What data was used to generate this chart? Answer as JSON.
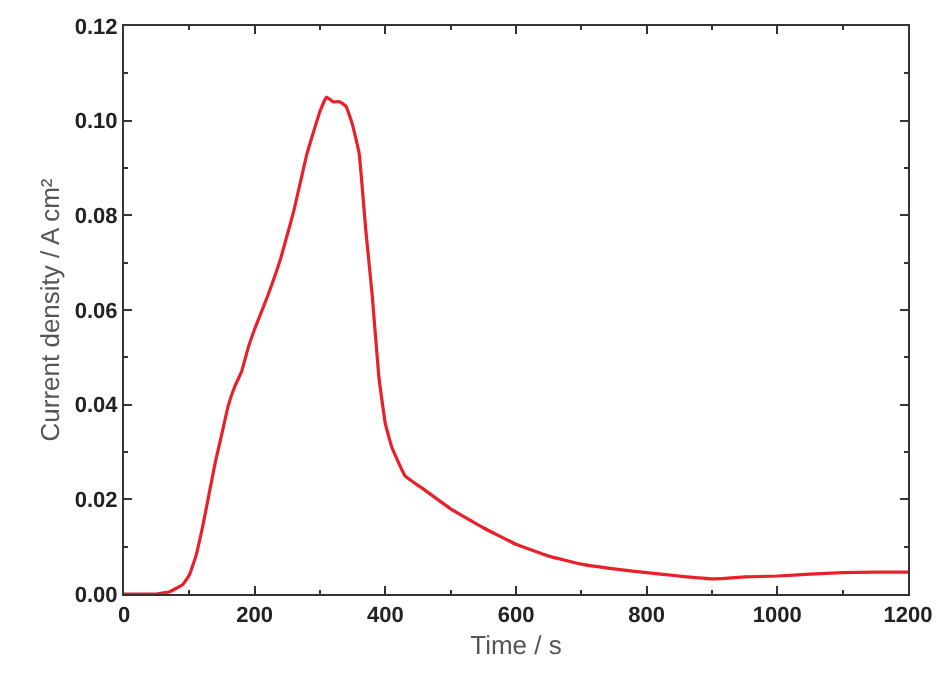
{
  "chart_data": {
    "type": "line",
    "xlabel": "Time / s",
    "ylabel": "Current density / A cm²",
    "x": [
      0,
      50,
      70,
      90,
      100,
      110,
      120,
      130,
      140,
      150,
      160,
      170,
      180,
      190,
      200,
      220,
      240,
      260,
      280,
      300,
      310,
      320,
      330,
      340,
      350,
      360,
      370,
      380,
      390,
      400,
      410,
      430,
      460,
      500,
      550,
      600,
      650,
      700,
      750,
      800,
      850,
      900,
      920,
      950,
      1000,
      1050,
      1100,
      1150,
      1200
    ],
    "series": [
      {
        "color": "#e8202a",
        "values": [
          0,
          0,
          0.0005,
          0.002,
          0.004,
          0.008,
          0.014,
          0.021,
          0.028,
          0.034,
          0.04,
          0.044,
          0.047,
          0.052,
          0.056,
          0.063,
          0.071,
          0.081,
          0.093,
          0.102,
          0.105,
          0.104,
          0.104,
          0.103,
          0.099,
          0.093,
          0.077,
          0.063,
          0.046,
          0.036,
          0.031,
          0.025,
          0.022,
          0.018,
          0.014,
          0.0105,
          0.008,
          0.0063,
          0.0053,
          0.0045,
          0.0038,
          0.0032,
          0.0033,
          0.0036,
          0.0038,
          0.0042,
          0.0045,
          0.0046,
          0.0046
        ]
      }
    ],
    "xlim": [
      0,
      1200
    ],
    "xticks": [
      0,
      200,
      400,
      600,
      800,
      1000,
      1200
    ],
    "ylim": [
      0,
      0.12
    ],
    "yticks": [
      "0.00",
      0.02,
      0.04,
      0.06,
      0.08,
      "0.10",
      0.12
    ],
    "marker": "none",
    "line_style": "solid"
  }
}
